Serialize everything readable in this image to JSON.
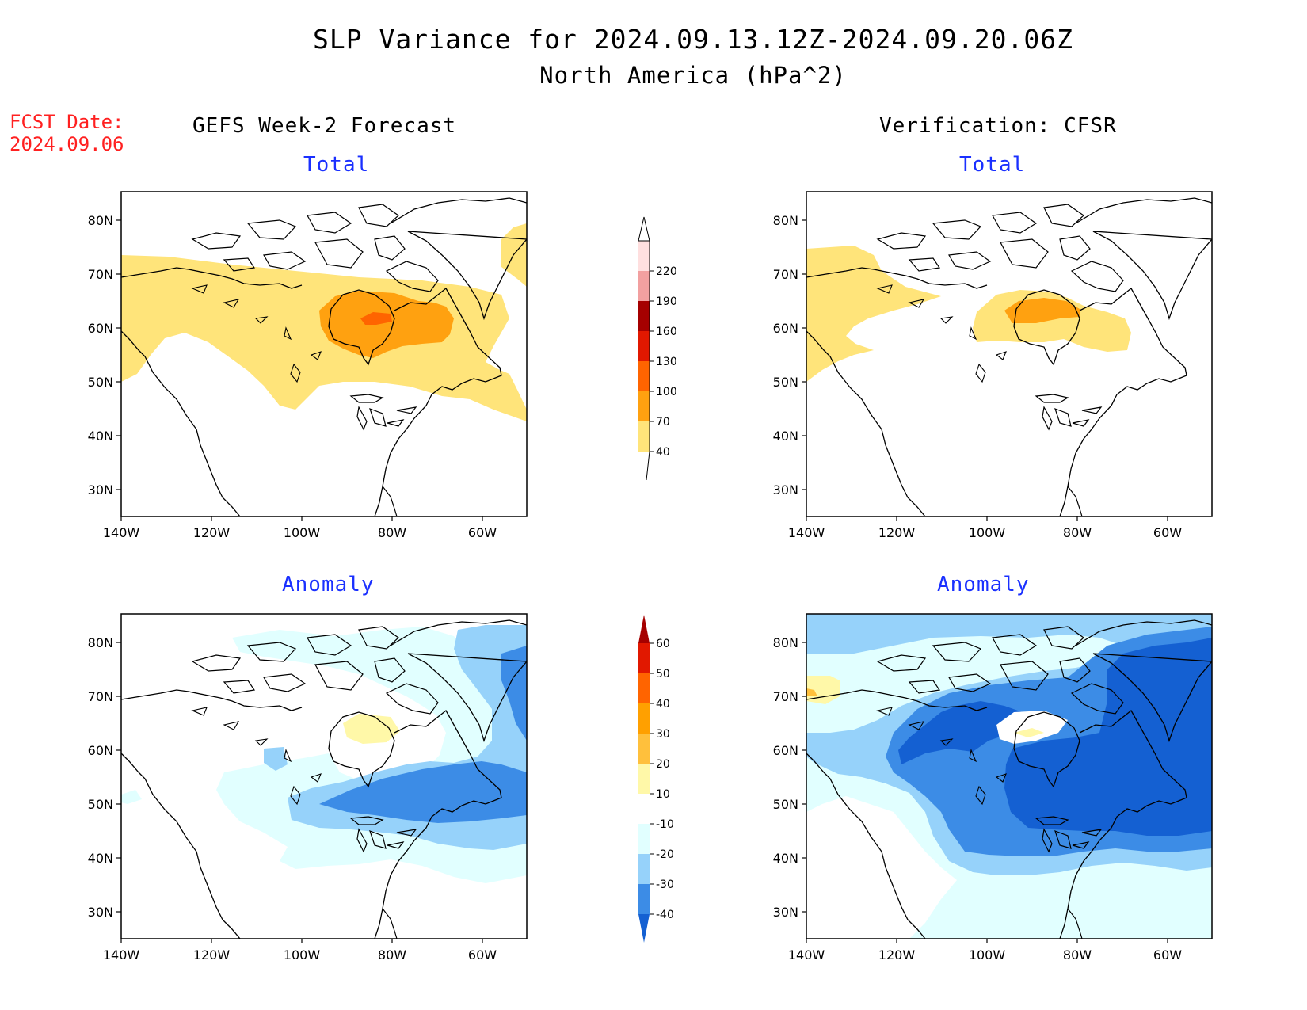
{
  "header": {
    "title": "SLP Variance for 2024.09.13.12Z-2024.09.20.06Z",
    "subtitle": "North America (hPa^2)"
  },
  "fcst_label": {
    "line1": "FCST Date:",
    "line2": "2024.09.06"
  },
  "columns": {
    "left": "GEFS Week-2 Forecast",
    "right": "Verification: CFSR"
  },
  "panels": {
    "top_left": "Total",
    "top_right": "Total",
    "bottom_left": "Anomaly",
    "bottom_right": "Anomaly"
  },
  "axes": {
    "lat_labels": [
      "80N",
      "70N",
      "60N",
      "50N",
      "40N",
      "30N"
    ],
    "lon_labels": [
      "140W",
      "120W",
      "100W",
      "80W",
      "60W"
    ]
  },
  "total_colorbar": {
    "labels": [
      "40",
      "70",
      "100",
      "130",
      "160",
      "190",
      "220"
    ],
    "colors": [
      "#ffe47a",
      "#ffa110",
      "#ff6400",
      "#e11800",
      "#a50000",
      "#f2a0a0",
      "#ffdfdf"
    ]
  },
  "anomaly_colorbar": {
    "labels": [
      "-40",
      "-30",
      "-20",
      "-10",
      "10",
      "20",
      "30",
      "40",
      "50",
      "60"
    ],
    "colors": [
      "#1460d2",
      "#3c8ce6",
      "#96d2fa",
      "#e1ffff",
      "#ffffff",
      "#fff8a8",
      "#ffc03c",
      "#ffa000",
      "#ff6400",
      "#e11800",
      "#a50000"
    ]
  },
  "fill_colors": {
    "total_40_70": "#ffe47a",
    "total_70_100": "#ffa110",
    "total_100_130": "#ff6400",
    "anom_m10_m20": "#e1ffff",
    "anom_m20_m30": "#96d2fa",
    "anom_m30_m40": "#3c8ce6",
    "anom_lt_m40": "#1460d2",
    "anom_10_20": "#fff8a8",
    "anom_20_30": "#ffc03c"
  }
}
